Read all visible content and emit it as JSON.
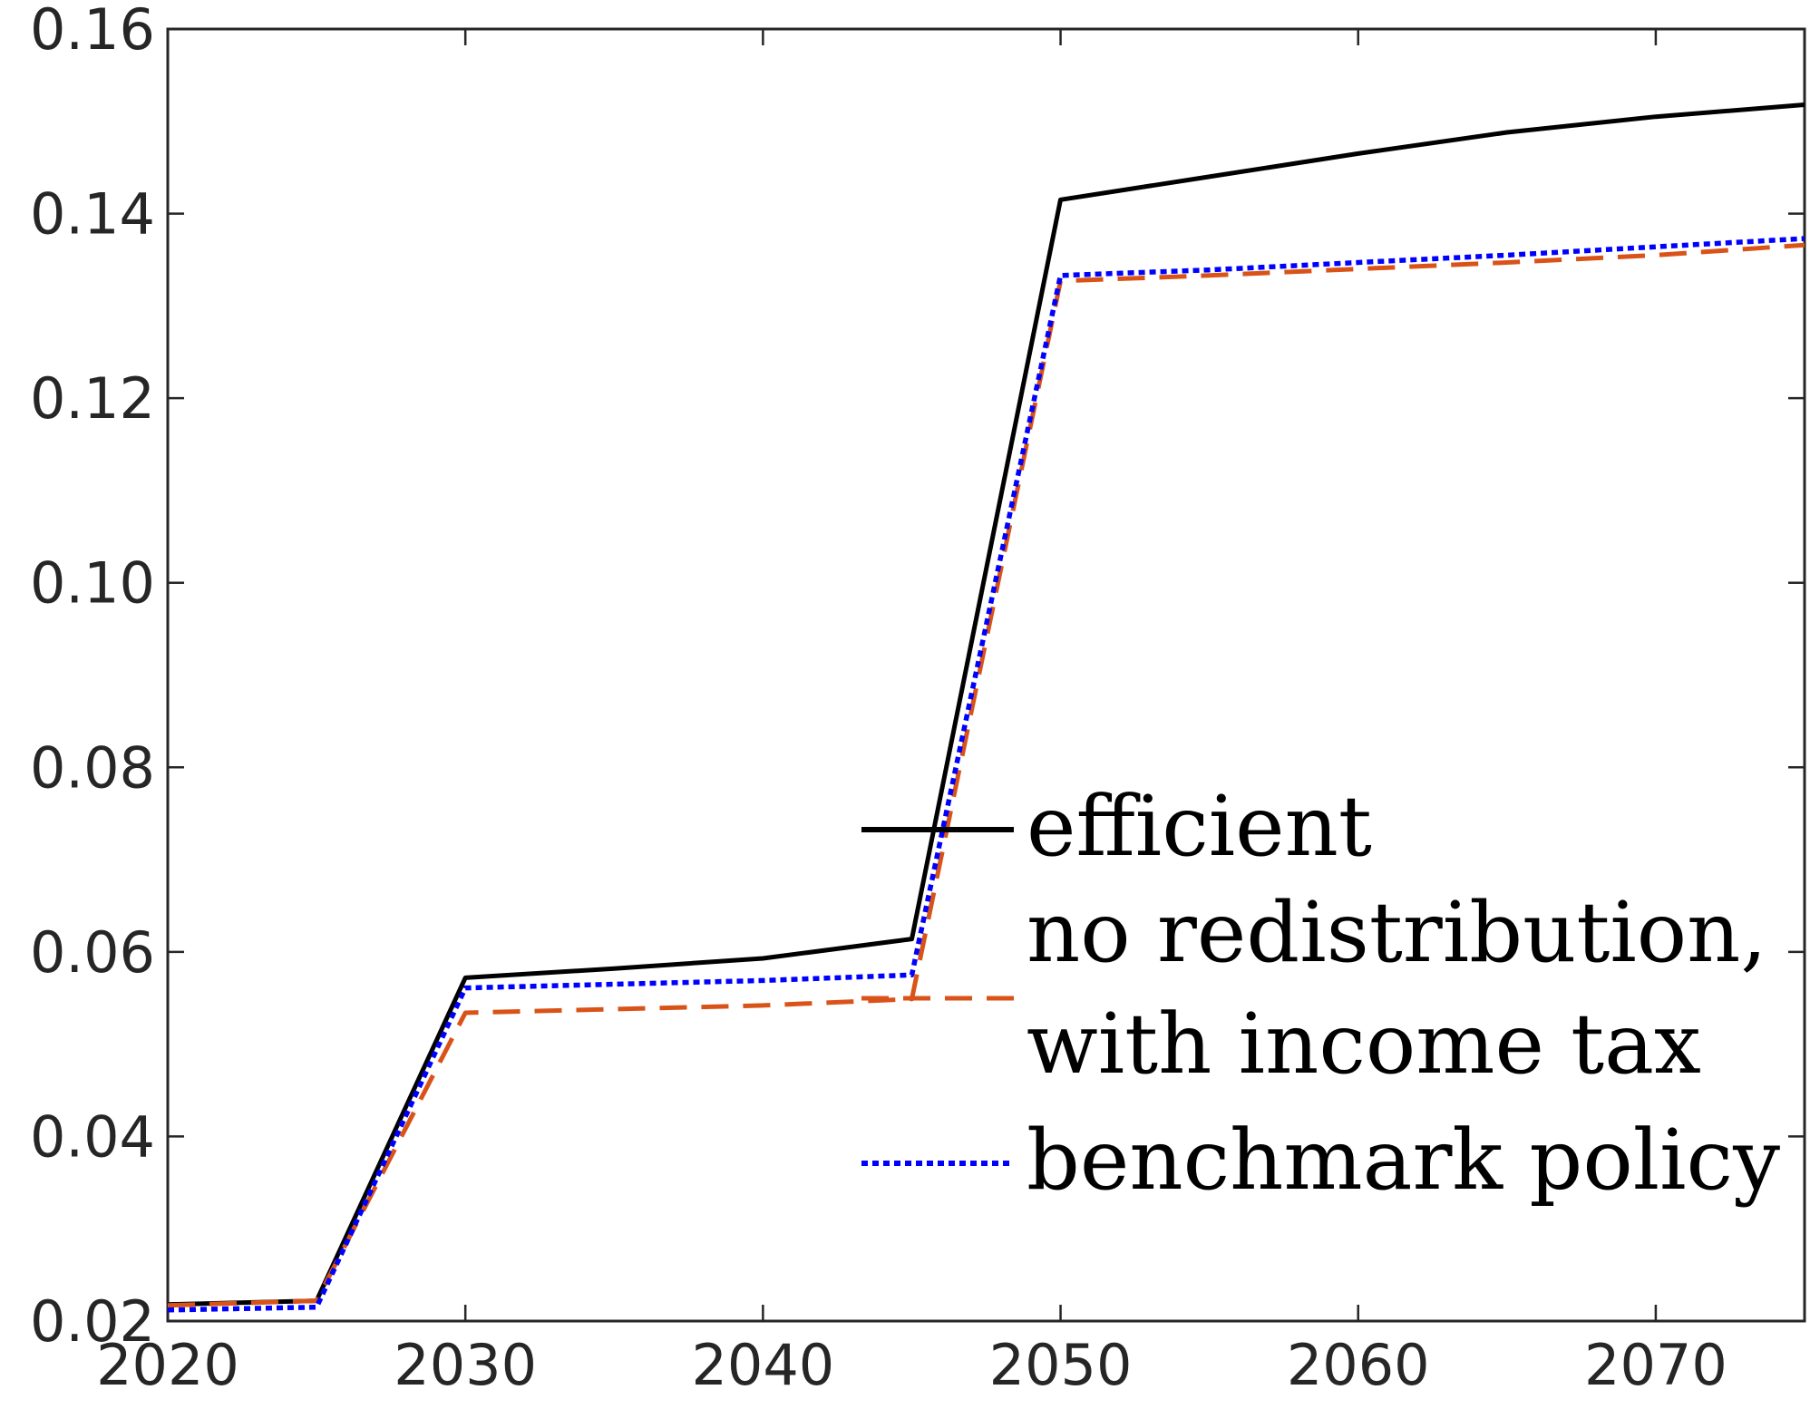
{
  "chart_data": {
    "type": "line",
    "title": "",
    "xlabel": "",
    "ylabel": "",
    "xlim": [
      2020,
      2075
    ],
    "ylim": [
      0.02,
      0.16
    ],
    "xticks": [
      2020,
      2030,
      2040,
      2050,
      2060,
      2070
    ],
    "yticks": [
      0.02,
      0.04,
      0.06,
      0.08,
      0.1,
      0.12,
      0.14,
      0.16
    ],
    "xtick_labels": [
      "2020",
      "2030",
      "2040",
      "2050",
      "2060",
      "2070"
    ],
    "ytick_labels": [
      "0.02",
      "0.04",
      "0.06",
      "0.08",
      "0.10",
      "0.12",
      "0.14",
      "0.16"
    ],
    "grid": false,
    "legend_position": "lower-right",
    "series": [
      {
        "name": "efficient",
        "color": "#000000",
        "style": "solid",
        "x": [
          2020,
          2025,
          2030,
          2035,
          2040,
          2045,
          2050,
          2055,
          2060,
          2065,
          2070,
          2075
        ],
        "y": [
          0.0218,
          0.0222,
          0.0572,
          0.0582,
          0.0593,
          0.0614,
          0.1415,
          0.144,
          0.1465,
          0.1488,
          0.1505,
          0.1518
        ]
      },
      {
        "name": "no redistribution, with income tax",
        "legend_lines": [
          "no redistribution,",
          "with income tax"
        ],
        "color": "#D95319",
        "style": "dashed",
        "x": [
          2020,
          2025,
          2030,
          2035,
          2040,
          2045,
          2050,
          2055,
          2060,
          2065,
          2070,
          2075
        ],
        "y": [
          0.0217,
          0.0222,
          0.0534,
          0.0538,
          0.0542,
          0.0549,
          0.1327,
          0.1333,
          0.134,
          0.1347,
          0.1355,
          0.1366
        ]
      },
      {
        "name": "benchmark policy",
        "color": "#0000FF",
        "style": "dotted",
        "x": [
          2020,
          2025,
          2030,
          2035,
          2040,
          2045,
          2050,
          2055,
          2060,
          2065,
          2070,
          2075
        ],
        "y": [
          0.0212,
          0.0215,
          0.0561,
          0.0565,
          0.0569,
          0.0575,
          0.1333,
          0.1339,
          0.1347,
          0.1355,
          0.1364,
          0.1373
        ]
      }
    ]
  }
}
